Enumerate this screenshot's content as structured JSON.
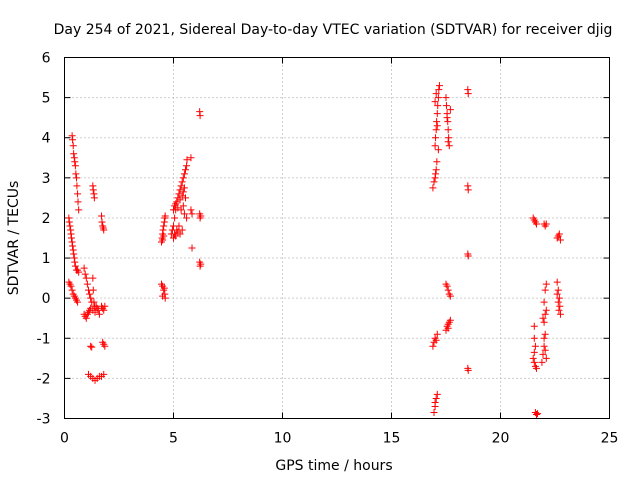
{
  "chart_data": {
    "type": "scatter",
    "title": "Day 254 of 2021, Sidereal Day-to-day VTEC variation (SDTVAR) for receiver djig",
    "xlabel": "GPS time / hours",
    "ylabel": "SDTVAR / TECUs",
    "xlim": [
      0,
      25
    ],
    "ylim": [
      -3,
      6
    ],
    "xticks": [
      0,
      5,
      10,
      15,
      20,
      25
    ],
    "yticks": [
      -3,
      -2,
      -1,
      0,
      1,
      2,
      3,
      4,
      5,
      6
    ],
    "grid": true,
    "marker": "plus",
    "marker_color": "#ff0000",
    "series": [
      {
        "name": "SDTVAR",
        "points": [
          [
            0.2,
            2.0
          ],
          [
            0.22,
            1.9
          ],
          [
            0.25,
            1.8
          ],
          [
            0.28,
            1.7
          ],
          [
            0.3,
            1.6
          ],
          [
            0.32,
            1.5
          ],
          [
            0.35,
            1.4
          ],
          [
            0.37,
            1.3
          ],
          [
            0.4,
            1.2
          ],
          [
            0.42,
            1.1
          ],
          [
            0.45,
            1.0
          ],
          [
            0.47,
            0.9
          ],
          [
            0.5,
            0.8
          ],
          [
            0.55,
            0.7
          ],
          [
            0.6,
            0.7
          ],
          [
            0.65,
            0.65
          ],
          [
            0.35,
            4.05
          ],
          [
            0.37,
            3.95
          ],
          [
            0.4,
            3.8
          ],
          [
            0.42,
            3.6
          ],
          [
            0.45,
            3.5
          ],
          [
            0.47,
            3.4
          ],
          [
            0.5,
            3.3
          ],
          [
            0.52,
            3.1
          ],
          [
            0.55,
            3.0
          ],
          [
            0.57,
            2.8
          ],
          [
            0.6,
            2.6
          ],
          [
            0.62,
            2.4
          ],
          [
            0.65,
            2.2
          ],
          [
            0.2,
            0.4
          ],
          [
            0.25,
            0.35
          ],
          [
            0.3,
            0.3
          ],
          [
            0.35,
            0.2
          ],
          [
            0.4,
            0.1
          ],
          [
            0.45,
            0.05
          ],
          [
            0.5,
            0.0
          ],
          [
            0.55,
            -0.05
          ],
          [
            0.6,
            -0.1
          ],
          [
            0.9,
            0.75
          ],
          [
            0.95,
            0.6
          ],
          [
            1.0,
            0.5
          ],
          [
            1.05,
            0.35
          ],
          [
            1.1,
            0.2
          ],
          [
            1.15,
            0.1
          ],
          [
            1.2,
            0.0
          ],
          [
            1.25,
            -0.1
          ],
          [
            1.3,
            0.5
          ],
          [
            1.32,
            0.2
          ],
          [
            1.35,
            -0.1
          ],
          [
            1.38,
            -0.2
          ],
          [
            0.9,
            -0.4
          ],
          [
            0.95,
            -0.45
          ],
          [
            1.0,
            -0.5
          ],
          [
            1.05,
            -0.4
          ],
          [
            1.1,
            -0.35
          ],
          [
            1.15,
            -0.3
          ],
          [
            1.2,
            -0.25
          ],
          [
            1.3,
            -0.3
          ],
          [
            1.4,
            -0.35
          ],
          [
            1.45,
            -0.2
          ],
          [
            1.5,
            -0.25
          ],
          [
            1.55,
            -0.3
          ],
          [
            1.6,
            -0.4
          ],
          [
            1.2,
            -1.2
          ],
          [
            1.25,
            -1.22
          ],
          [
            1.3,
            2.8
          ],
          [
            1.32,
            2.7
          ],
          [
            1.35,
            2.6
          ],
          [
            1.37,
            2.5
          ],
          [
            1.1,
            -1.9
          ],
          [
            1.2,
            -1.95
          ],
          [
            1.3,
            -2.0
          ],
          [
            1.4,
            -2.05
          ],
          [
            1.5,
            -2.0
          ],
          [
            1.6,
            -1.95
          ],
          [
            1.7,
            -1.95
          ],
          [
            1.8,
            -1.9
          ],
          [
            1.75,
            -1.1
          ],
          [
            1.8,
            -1.15
          ],
          [
            1.85,
            -1.2
          ],
          [
            1.7,
            2.05
          ],
          [
            1.72,
            1.9
          ],
          [
            1.75,
            1.8
          ],
          [
            1.78,
            1.75
          ],
          [
            1.8,
            1.7
          ],
          [
            1.7,
            -0.2
          ],
          [
            1.75,
            -0.25
          ],
          [
            1.8,
            -0.3
          ],
          [
            1.85,
            -0.2
          ],
          [
            4.45,
            1.4
          ],
          [
            4.48,
            1.5
          ],
          [
            4.5,
            1.6
          ],
          [
            4.52,
            1.7
          ],
          [
            4.55,
            1.8
          ],
          [
            4.58,
            1.9
          ],
          [
            4.6,
            2.0
          ],
          [
            4.62,
            2.05
          ],
          [
            4.5,
            1.45
          ],
          [
            4.55,
            1.55
          ],
          [
            4.45,
            0.35
          ],
          [
            4.5,
            0.3
          ],
          [
            4.55,
            0.2
          ],
          [
            4.6,
            0.1
          ],
          [
            4.62,
            0.0
          ],
          [
            4.5,
            0.05
          ],
          [
            4.58,
            0.25
          ],
          [
            4.9,
            1.6
          ],
          [
            4.95,
            1.7
          ],
          [
            5.0,
            1.8
          ],
          [
            5.0,
            1.5
          ],
          [
            5.05,
            2.0
          ],
          [
            5.05,
            1.6
          ],
          [
            5.1,
            2.2
          ],
          [
            5.1,
            1.55
          ],
          [
            5.15,
            2.4
          ],
          [
            5.15,
            1.7
          ],
          [
            5.2,
            2.5
          ],
          [
            5.2,
            1.65
          ],
          [
            5.25,
            2.6
          ],
          [
            5.25,
            1.8
          ],
          [
            5.3,
            2.7
          ],
          [
            5.3,
            1.6
          ],
          [
            5.35,
            2.8
          ],
          [
            5.35,
            2.2
          ],
          [
            5.4,
            2.9
          ],
          [
            5.4,
            1.7
          ],
          [
            5.45,
            3.0
          ],
          [
            5.45,
            2.3
          ],
          [
            5.5,
            3.1
          ],
          [
            5.5,
            2.1
          ],
          [
            5.55,
            3.2
          ],
          [
            5.55,
            2.5
          ],
          [
            5.6,
            3.3
          ],
          [
            5.6,
            2.0
          ],
          [
            5.62,
            3.45
          ],
          [
            5.05,
            2.3
          ],
          [
            5.1,
            2.35
          ],
          [
            5.2,
            2.25
          ],
          [
            5.3,
            2.45
          ],
          [
            5.4,
            2.55
          ],
          [
            5.45,
            2.65
          ],
          [
            5.5,
            2.75
          ],
          [
            5.0,
            2.2
          ],
          [
            5.8,
            3.5
          ],
          [
            5.8,
            2.2
          ],
          [
            5.85,
            2.1
          ],
          [
            5.85,
            1.25
          ],
          [
            6.2,
            4.65
          ],
          [
            6.22,
            4.55
          ],
          [
            6.2,
            2.1
          ],
          [
            6.22,
            2.0
          ],
          [
            6.25,
            2.05
          ],
          [
            6.2,
            0.9
          ],
          [
            6.22,
            0.8
          ],
          [
            6.25,
            0.85
          ],
          [
            16.9,
            2.75
          ],
          [
            16.95,
            2.9
          ],
          [
            17.0,
            3.0
          ],
          [
            17.02,
            3.1
          ],
          [
            17.05,
            3.2
          ],
          [
            17.08,
            3.4
          ],
          [
            17.0,
            3.8
          ],
          [
            17.02,
            4.0
          ],
          [
            17.05,
            4.2
          ],
          [
            17.07,
            4.4
          ],
          [
            17.1,
            4.6
          ],
          [
            17.12,
            4.8
          ],
          [
            17.15,
            5.0
          ],
          [
            17.17,
            5.2
          ],
          [
            17.2,
            5.3
          ],
          [
            17.0,
            4.9
          ],
          [
            17.05,
            5.1
          ],
          [
            17.1,
            4.3
          ],
          [
            17.15,
            3.7
          ],
          [
            17.5,
            5.0
          ],
          [
            17.52,
            4.8
          ],
          [
            17.55,
            4.6
          ],
          [
            17.58,
            4.4
          ],
          [
            17.6,
            4.2
          ],
          [
            17.62,
            4.0
          ],
          [
            17.65,
            3.8
          ],
          [
            17.7,
            4.7
          ],
          [
            17.55,
            4.5
          ],
          [
            17.6,
            3.9
          ],
          [
            17.5,
            0.35
          ],
          [
            17.55,
            0.3
          ],
          [
            17.6,
            0.2
          ],
          [
            17.65,
            0.1
          ],
          [
            17.7,
            0.05
          ],
          [
            16.9,
            -1.2
          ],
          [
            16.95,
            -1.1
          ],
          [
            17.0,
            -1.0
          ],
          [
            17.05,
            -1.05
          ],
          [
            17.1,
            -0.9
          ],
          [
            17.5,
            -0.8
          ],
          [
            17.55,
            -0.7
          ],
          [
            17.6,
            -0.65
          ],
          [
            17.65,
            -0.6
          ],
          [
            17.7,
            -0.55
          ],
          [
            17.6,
            -0.75
          ],
          [
            16.95,
            -2.85
          ],
          [
            17.0,
            -2.7
          ],
          [
            17.05,
            -2.5
          ],
          [
            17.1,
            -2.4
          ],
          [
            17.0,
            -2.6
          ],
          [
            18.5,
            5.2
          ],
          [
            18.52,
            5.1
          ],
          [
            18.5,
            2.8
          ],
          [
            18.52,
            2.7
          ],
          [
            18.5,
            1.1
          ],
          [
            18.52,
            1.05
          ],
          [
            18.5,
            -1.75
          ],
          [
            18.52,
            -1.8
          ],
          [
            21.5,
            2.0
          ],
          [
            21.55,
            1.95
          ],
          [
            21.6,
            1.9
          ],
          [
            21.65,
            1.85
          ],
          [
            21.5,
            -1.5
          ],
          [
            21.55,
            -1.6
          ],
          [
            21.6,
            -1.7
          ],
          [
            21.65,
            -1.75
          ],
          [
            21.55,
            -0.7
          ],
          [
            21.55,
            -1.0
          ],
          [
            21.6,
            -1.2
          ],
          [
            21.55,
            -1.35
          ],
          [
            21.9,
            -1.6
          ],
          [
            21.95,
            -1.4
          ],
          [
            22.0,
            -1.2
          ],
          [
            22.05,
            -0.9
          ],
          [
            22.0,
            -0.6
          ],
          [
            22.05,
            -0.4
          ],
          [
            22.1,
            -0.3
          ],
          [
            22.0,
            -0.1
          ],
          [
            22.05,
            0.2
          ],
          [
            22.1,
            0.35
          ],
          [
            21.95,
            -0.5
          ],
          [
            22.0,
            -1.0
          ],
          [
            22.05,
            -1.3
          ],
          [
            22.1,
            -1.5
          ],
          [
            22.0,
            1.85
          ],
          [
            22.05,
            1.8
          ],
          [
            22.1,
            1.85
          ],
          [
            21.6,
            -2.85
          ],
          [
            21.65,
            -2.9
          ],
          [
            21.7,
            -2.88
          ],
          [
            22.6,
            0.4
          ],
          [
            22.65,
            0.2
          ],
          [
            22.7,
            0.0
          ],
          [
            22.72,
            -0.2
          ],
          [
            22.75,
            -0.4
          ],
          [
            22.68,
            -0.3
          ],
          [
            22.6,
            0.1
          ],
          [
            22.65,
            -0.1
          ],
          [
            22.6,
            1.5
          ],
          [
            22.65,
            1.55
          ],
          [
            22.7,
            1.6
          ],
          [
            22.75,
            1.45
          ]
        ]
      }
    ]
  }
}
